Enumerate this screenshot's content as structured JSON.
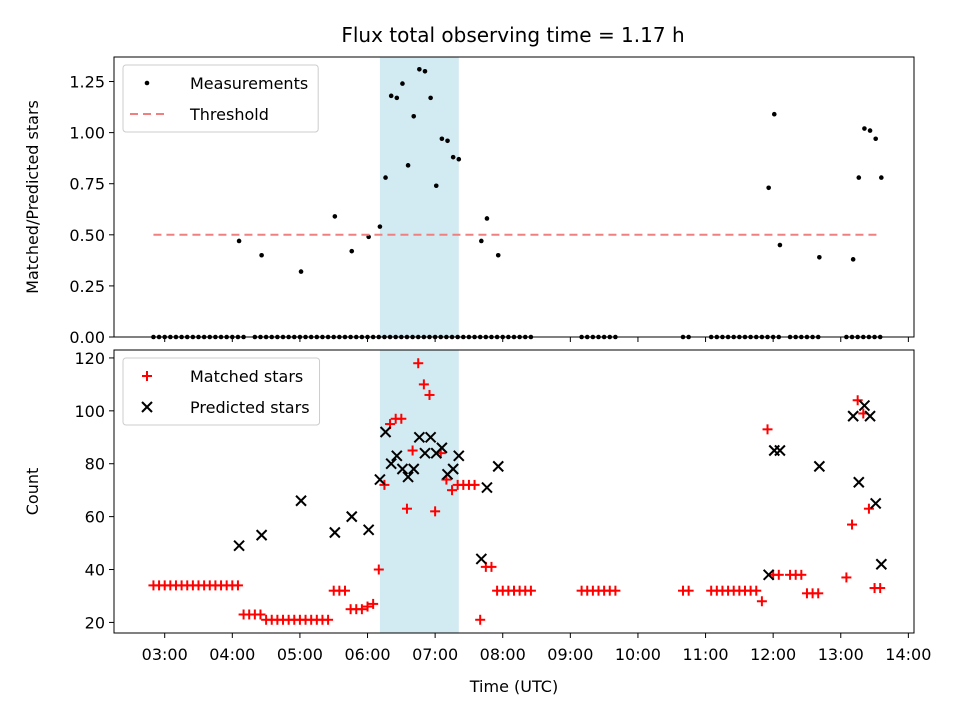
{
  "chart_data": [
    {
      "type": "scatter",
      "title": "Flux total observing time = 1.17 h",
      "xlabel": "",
      "ylabel": "Matched/Predicted stars",
      "ylim": [
        0,
        1.37
      ],
      "yticks": [
        "0.00",
        "0.25",
        "0.50",
        "0.75",
        "1.00",
        "1.25"
      ],
      "legend": "top-left",
      "highlight_span": {
        "start": "06:11",
        "end": "07:21",
        "color": "#add8e6"
      },
      "series": [
        {
          "name": "Measurements",
          "marker": "dot",
          "color": "#000000",
          "x": [
            "02:50",
            "02:55",
            "03:00",
            "03:05",
            "03:10",
            "03:15",
            "03:20",
            "03:25",
            "03:30",
            "03:35",
            "03:40",
            "03:45",
            "03:50",
            "03:55",
            "04:00",
            "04:05",
            "04:10",
            "04:20",
            "04:25",
            "04:30",
            "04:35",
            "04:40",
            "04:45",
            "04:50",
            "04:55",
            "05:00",
            "05:05",
            "05:10",
            "05:15",
            "05:20",
            "05:25",
            "05:30",
            "05:35",
            "05:40",
            "05:45",
            "05:50",
            "05:55",
            "06:00",
            "06:05",
            "06:10",
            "06:15",
            "06:20",
            "06:25",
            "06:30",
            "06:35",
            "06:40",
            "06:45",
            "06:50",
            "06:55",
            "07:00",
            "07:05",
            "07:10",
            "07:15",
            "07:20",
            "07:25",
            "07:30",
            "07:35",
            "07:40",
            "07:45",
            "07:50",
            "07:55",
            "08:00",
            "08:05",
            "08:10",
            "08:15",
            "08:20",
            "08:25",
            "09:10",
            "09:15",
            "09:20",
            "09:25",
            "09:30",
            "09:35",
            "09:40",
            "10:40",
            "10:45",
            "11:05",
            "11:10",
            "11:15",
            "11:20",
            "11:25",
            "11:30",
            "11:35",
            "11:40",
            "11:45",
            "11:50",
            "11:55",
            "12:00",
            "12:05",
            "12:15",
            "12:20",
            "12:25",
            "12:30",
            "12:35",
            "12:40",
            "13:05",
            "13:10",
            "13:15",
            "13:20",
            "13:25",
            "13:30",
            "13:35",
            "04:06",
            "04:26",
            "05:01",
            "05:31",
            "05:46",
            "06:01",
            "06:11",
            "06:16",
            "06:21",
            "06:26",
            "06:31",
            "06:36",
            "06:41",
            "06:46",
            "06:51",
            "06:56",
            "07:01",
            "07:06",
            "07:11",
            "07:16",
            "07:21",
            "07:41",
            "07:46",
            "07:56",
            "11:56",
            "12:01",
            "12:06",
            "12:41",
            "13:11",
            "13:16",
            "13:21",
            "13:26",
            "13:31",
            "13:36"
          ],
          "y": [
            0,
            0,
            0,
            0,
            0,
            0,
            0,
            0,
            0,
            0,
            0,
            0,
            0,
            0,
            0,
            0,
            0,
            0,
            0,
            0,
            0,
            0,
            0,
            0,
            0,
            0,
            0,
            0,
            0,
            0,
            0,
            0,
            0,
            0,
            0,
            0,
            0,
            0,
            0,
            0,
            0,
            0,
            0,
            0,
            0,
            0,
            0,
            0,
            0,
            0,
            0,
            0,
            0,
            0,
            0,
            0,
            0,
            0,
            0,
            0,
            0,
            0,
            0,
            0,
            0,
            0,
            0,
            0,
            0,
            0,
            0,
            0,
            0,
            0,
            0,
            0,
            0,
            0,
            0,
            0,
            0,
            0,
            0,
            0,
            0,
            0,
            0,
            0,
            0,
            0,
            0,
            0,
            0,
            0,
            0,
            0,
            0,
            0,
            0,
            0,
            0,
            0,
            0.47,
            0.4,
            0.32,
            0.59,
            0.42,
            0.49,
            0.54,
            0.78,
            1.18,
            1.17,
            1.24,
            0.84,
            1.08,
            1.31,
            1.3,
            1.17,
            0.74,
            0.97,
            0.96,
            0.88,
            0.87,
            0.47,
            0.58,
            0.4,
            0.73,
            1.09,
            0.45,
            0.39,
            0.38,
            0.78,
            1.02,
            1.01,
            0.97,
            0.78
          ]
        },
        {
          "name": "Threshold",
          "marker": "dashed-line",
          "color": "#f08080",
          "x": [
            "02:50",
            "13:36"
          ],
          "y": [
            0.5,
            0.5
          ]
        }
      ]
    },
    {
      "type": "scatter",
      "title": "",
      "xlabel": "Time (UTC)",
      "ylabel": "Count",
      "ylim": [
        16,
        123
      ],
      "yticks": [
        "20",
        "40",
        "60",
        "80",
        "100",
        "120"
      ],
      "xticks": [
        "03:00",
        "04:00",
        "05:00",
        "06:00",
        "07:00",
        "08:00",
        "09:00",
        "10:00",
        "11:00",
        "12:00",
        "13:00",
        "14:00"
      ],
      "xlim": [
        "02:15",
        "14:05"
      ],
      "legend": "top-left",
      "highlight_span": {
        "start": "06:11",
        "end": "07:21",
        "color": "#add8e6"
      },
      "series": [
        {
          "name": "Matched stars",
          "marker": "plus",
          "color": "#ff0000",
          "x": [
            "02:50",
            "02:55",
            "03:00",
            "03:05",
            "03:10",
            "03:15",
            "03:20",
            "03:25",
            "03:30",
            "03:35",
            "03:40",
            "03:45",
            "03:50",
            "03:55",
            "04:00",
            "04:05",
            "04:10",
            "04:15",
            "04:20",
            "04:25",
            "04:30",
            "04:35",
            "04:40",
            "04:45",
            "04:50",
            "04:55",
            "05:00",
            "05:05",
            "05:10",
            "05:15",
            "05:20",
            "05:25",
            "05:30",
            "05:35",
            "05:40",
            "05:45",
            "05:50",
            "05:55",
            "06:00",
            "06:05",
            "06:10",
            "06:15",
            "06:20",
            "06:25",
            "06:30",
            "06:35",
            "06:40",
            "06:45",
            "06:50",
            "06:55",
            "07:00",
            "07:05",
            "07:10",
            "07:15",
            "07:20",
            "07:25",
            "07:30",
            "07:35",
            "07:40",
            "07:45",
            "07:50",
            "07:55",
            "08:00",
            "08:05",
            "08:10",
            "08:15",
            "08:20",
            "08:25",
            "09:10",
            "09:15",
            "09:20",
            "09:25",
            "09:30",
            "09:35",
            "09:40",
            "10:40",
            "10:45",
            "11:05",
            "11:10",
            "11:15",
            "11:20",
            "11:25",
            "11:30",
            "11:35",
            "11:40",
            "11:45",
            "11:50",
            "11:55",
            "12:00",
            "12:05",
            "12:15",
            "12:20",
            "12:25",
            "12:30",
            "12:35",
            "12:40",
            "13:05",
            "13:10",
            "13:15",
            "13:20",
            "13:25",
            "13:30",
            "13:35"
          ],
          "y": [
            34,
            34,
            34,
            34,
            34,
            34,
            34,
            34,
            34,
            34,
            34,
            34,
            34,
            34,
            34,
            34,
            23,
            23,
            23,
            23,
            21,
            21,
            21,
            21,
            21,
            21,
            21,
            21,
            21,
            21,
            21,
            21,
            32,
            32,
            32,
            25,
            25,
            25,
            26,
            27,
            40,
            72,
            95,
            97,
            97,
            63,
            85,
            118,
            110,
            106,
            62,
            84,
            74,
            70,
            72,
            72,
            72,
            72,
            21,
            41,
            41,
            32,
            32,
            32,
            32,
            32,
            32,
            32,
            32,
            32,
            32,
            32,
            32,
            32,
            32,
            32,
            32,
            32,
            32,
            32,
            32,
            32,
            32,
            32,
            32,
            32,
            28,
            93,
            38,
            38,
            38,
            38,
            38,
            31,
            31,
            31,
            37,
            57,
            104,
            99,
            63,
            33,
            33
          ]
        },
        {
          "name": "Predicted stars",
          "marker": "x",
          "color": "#000000",
          "x": [
            "04:06",
            "04:26",
            "05:01",
            "05:31",
            "05:46",
            "06:01",
            "06:11",
            "06:16",
            "06:21",
            "06:26",
            "06:31",
            "06:36",
            "06:41",
            "06:46",
            "06:51",
            "06:56",
            "07:01",
            "07:06",
            "07:11",
            "07:16",
            "07:21",
            "07:41",
            "07:46",
            "07:56",
            "11:56",
            "12:01",
            "12:06",
            "12:41",
            "13:11",
            "13:16",
            "13:21",
            "13:26",
            "13:31",
            "13:36"
          ],
          "y": [
            49,
            53,
            66,
            54,
            60,
            55,
            74,
            92,
            80,
            83,
            78,
            75,
            78,
            90,
            84,
            90,
            84,
            86,
            76,
            78,
            83,
            44,
            71,
            79,
            38,
            85,
            85,
            79,
            98,
            73,
            102,
            98,
            65,
            42
          ]
        }
      ]
    }
  ]
}
